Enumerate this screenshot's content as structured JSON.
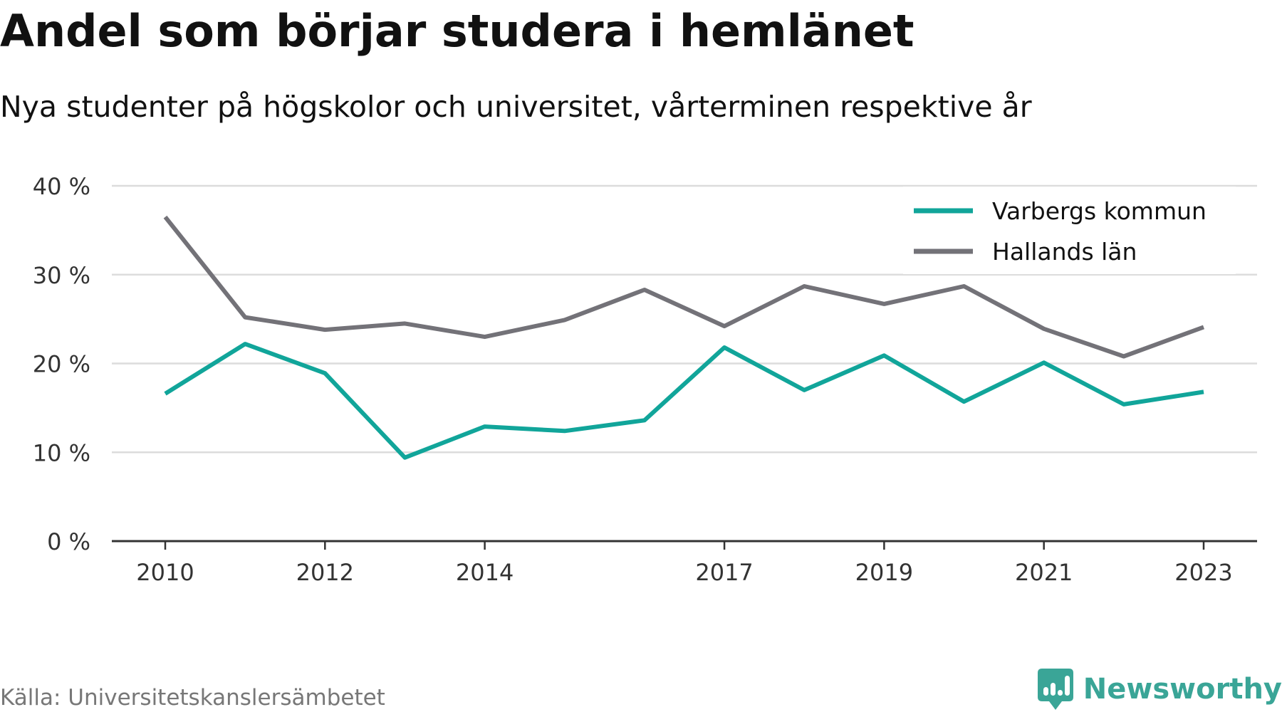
{
  "brand_color": "#3aa597",
  "chart_data": {
    "type": "line",
    "title": "Andel som börjar studera i hemlänet",
    "subtitle": "Nya studenter på högskolor och universitet, vårterminen respektive år",
    "x": [
      2010,
      2011,
      2012,
      2013,
      2014,
      2015,
      2016,
      2017,
      2018,
      2019,
      2020,
      2021,
      2022,
      2023
    ],
    "x_tick_values": [
      2010,
      2012,
      2014,
      2017,
      2019,
      2021,
      2023
    ],
    "x_tick_labels": [
      "2010",
      "2012",
      "2014",
      "2017",
      "2019",
      "2021",
      "2023"
    ],
    "xlabel": "",
    "ylabel": "",
    "ylim": [
      0,
      40
    ],
    "y_tick_values": [
      0,
      10,
      20,
      30,
      40
    ],
    "y_tick_labels": [
      "0 %",
      "10 %",
      "20 %",
      "30 %",
      "40 %"
    ],
    "grid": true,
    "legend_position": "top-right",
    "series": [
      {
        "name": "Varbergs kommun",
        "color": "#11a59a",
        "values": [
          16.6,
          22.2,
          18.9,
          9.4,
          12.9,
          12.4,
          13.6,
          21.8,
          17.0,
          20.9,
          15.7,
          20.1,
          15.4,
          16.8
        ]
      },
      {
        "name": "Hallands län",
        "color": "#737278",
        "values": [
          36.5,
          25.2,
          23.8,
          24.5,
          23.0,
          24.9,
          28.3,
          24.2,
          28.7,
          26.7,
          28.7,
          23.9,
          20.8,
          24.1
        ]
      }
    ]
  },
  "footer": {
    "source": "Källa: Universitetskanslersämbetet",
    "brand_name": "Newsworthy",
    "brand_icon": "newsworthy-logo-icon"
  }
}
